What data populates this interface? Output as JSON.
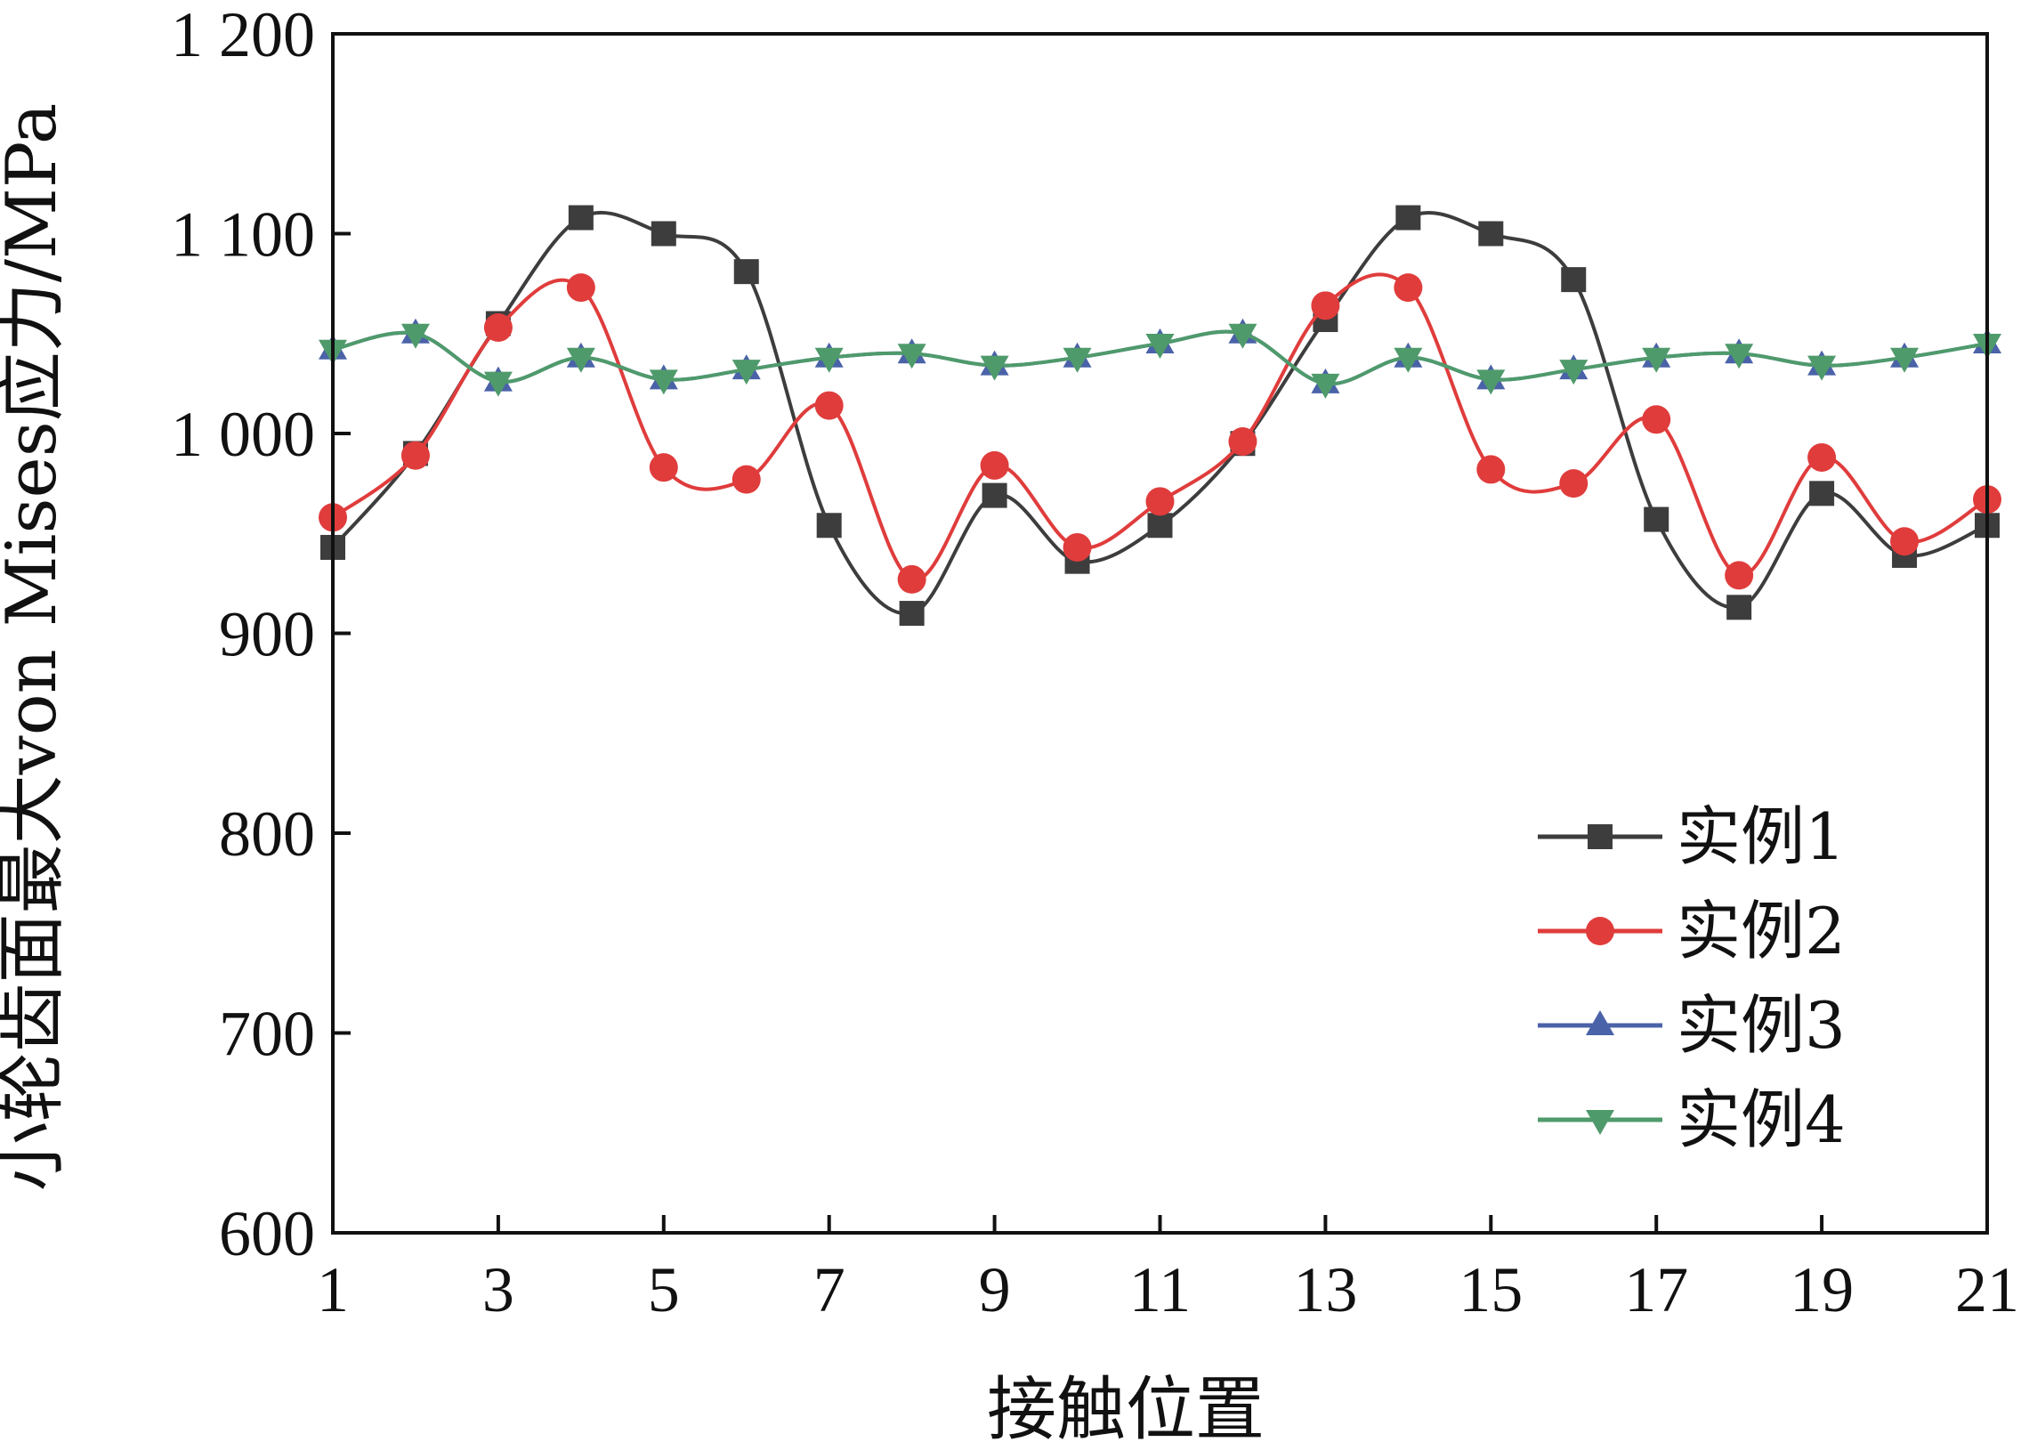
{
  "chart_data": {
    "type": "line",
    "title": "",
    "xlabel": "接触位置",
    "ylabel": "小轮齿面最大von Mises应力/MPa",
    "xlim": [
      1,
      21
    ],
    "ylim": [
      600,
      1200
    ],
    "x_ticks": [
      1,
      3,
      5,
      7,
      9,
      11,
      13,
      15,
      17,
      19,
      21
    ],
    "x_tick_labels": [
      "1",
      "3",
      "5",
      "7",
      "9",
      "11",
      "13",
      "15",
      "17",
      "19",
      "21"
    ],
    "y_ticks": [
      600,
      700,
      800,
      900,
      1000,
      1100,
      1200
    ],
    "y_tick_labels": [
      "600",
      "700",
      "800",
      "900",
      "1 000",
      "1 100",
      "1 200"
    ],
    "grid": false,
    "legend_position": "bottom-right",
    "x": [
      1,
      2,
      3,
      4,
      5,
      6,
      7,
      8,
      9,
      10,
      11,
      12,
      13,
      14,
      15,
      16,
      17,
      18,
      19,
      20,
      21
    ],
    "series": [
      {
        "name": "实例1",
        "color": "#3d3d3d",
        "marker": "square",
        "values": [
          943,
          990,
          1055,
          1108,
          1100,
          1081,
          954,
          910,
          969,
          936,
          954,
          995,
          1057,
          1108,
          1100,
          1077,
          957,
          913,
          970,
          939,
          954
        ]
      },
      {
        "name": "实例2",
        "color": "#e03c3c",
        "marker": "circle",
        "values": [
          958,
          989,
          1053,
          1073,
          983,
          977,
          1014,
          927,
          984,
          943,
          966,
          996,
          1064,
          1073,
          982,
          975,
          1007,
          929,
          988,
          946,
          967
        ]
      },
      {
        "name": "实例3",
        "color": "#4a62a8",
        "marker": "triangle-up",
        "values": [
          1042,
          1050,
          1026,
          1038,
          1027,
          1032,
          1038,
          1040,
          1034,
          1038,
          1045,
          1050,
          1025,
          1038,
          1027,
          1032,
          1038,
          1040,
          1034,
          1038,
          1045
        ]
      },
      {
        "name": "实例4",
        "color": "#4f9a6b",
        "marker": "triangle-down",
        "values": [
          1042,
          1050,
          1026,
          1038,
          1027,
          1032,
          1038,
          1040,
          1034,
          1038,
          1045,
          1050,
          1025,
          1038,
          1027,
          1032,
          1038,
          1040,
          1034,
          1038,
          1045
        ]
      }
    ]
  }
}
